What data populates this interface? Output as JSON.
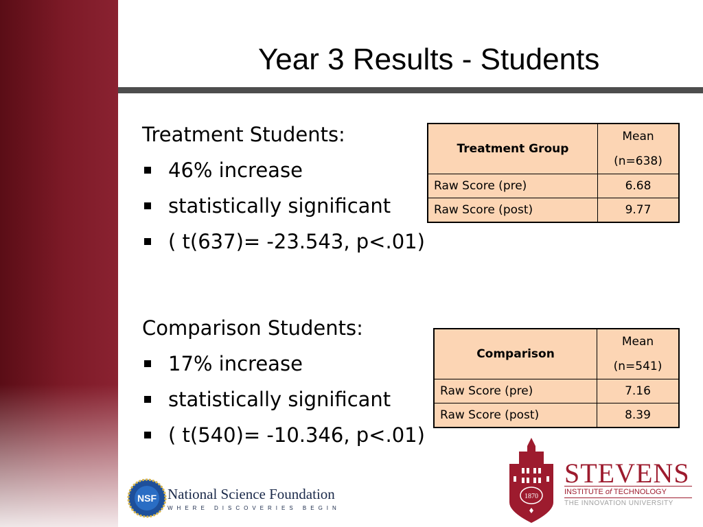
{
  "slide": {
    "title": "Year 3 Results - Students"
  },
  "treatment": {
    "heading": "Treatment Students:",
    "bullets": [
      "46% increase",
      "statistically significant",
      "( t(637)= -23.543, p<.01)"
    ],
    "table": {
      "group_header": "Treatment Group",
      "mean_header_line1": "Mean",
      "mean_header_line2": "(n=638)",
      "rows": [
        {
          "label": "Raw Score (pre)",
          "value": "6.68"
        },
        {
          "label": "Raw Score (post)",
          "value": "9.77"
        }
      ]
    }
  },
  "comparison": {
    "heading": "Comparison Students:",
    "bullets": [
      "17% increase",
      "statistically significant",
      "( t(540)= -10.346, p<.01)"
    ],
    "table": {
      "group_header": "Comparison",
      "mean_header_line1": "Mean",
      "mean_header_line2": "(n=541)",
      "rows": [
        {
          "label": "Raw Score (pre)",
          "value": "7.16"
        },
        {
          "label": "Raw Score (post)",
          "value": "8.39"
        }
      ]
    }
  },
  "logos": {
    "nsf": {
      "seal_text": "NSF",
      "name": "National Science Foundation",
      "tagline": "WHERE DISCOVERIES BEGIN"
    },
    "stevens": {
      "seal_year": "1870",
      "name": "STEVENS",
      "subtitle_pre": "INSTITUTE ",
      "subtitle_of": "of",
      "subtitle_post": " TECHNOLOGY",
      "tagline": "THE INNOVATION UNIVERSITY"
    }
  },
  "colors": {
    "sidebar": "#7d1a27",
    "table_fill": "#fcd5b4",
    "stevens_red": "#9d1b2e",
    "nsf_blue": "#1b2a4a"
  }
}
